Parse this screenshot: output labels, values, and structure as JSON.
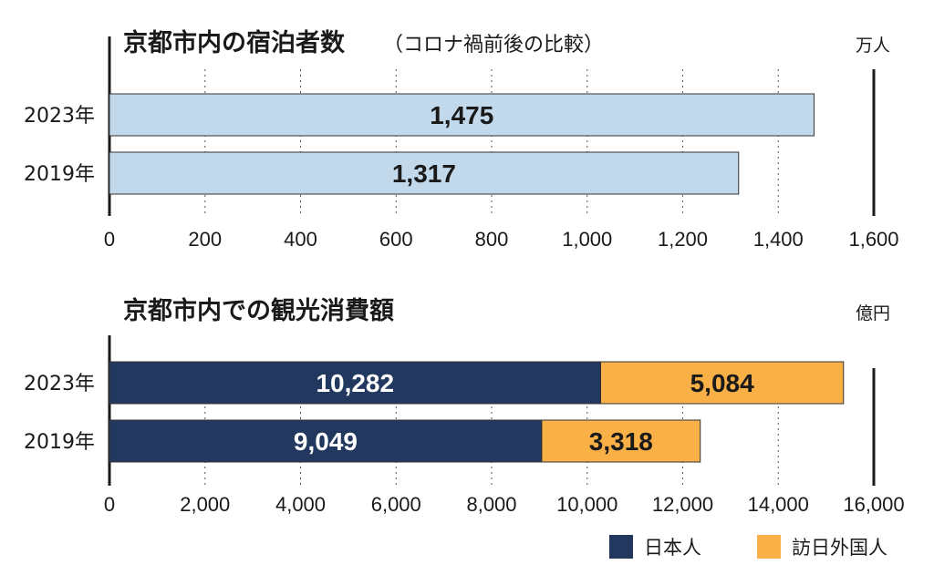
{
  "chart_data": [
    {
      "type": "bar",
      "orientation": "horizontal",
      "title": "京都市内の宿泊者数",
      "subtitle": "（コロナ禍前後の比較）",
      "unit": "万人",
      "categories": [
        "2023年",
        "2019年"
      ],
      "series": [
        {
          "values": [
            1475,
            1317
          ],
          "color": "#c2d9ec"
        }
      ],
      "data_labels": [
        "1,475",
        "1,317"
      ],
      "xlim": [
        0,
        1600
      ],
      "ticks": [
        0,
        200,
        400,
        600,
        800,
        1000,
        1200,
        1400,
        1600
      ],
      "tick_labels": [
        "0",
        "200",
        "400",
        "600",
        "800",
        "1,000",
        "1,200",
        "1,400",
        "1,600"
      ],
      "grid": "vertical dotted"
    },
    {
      "type": "bar",
      "orientation": "horizontal",
      "stacked": true,
      "title": "京都市内での観光消費額",
      "unit": "億円",
      "categories": [
        "2023年",
        "2019年"
      ],
      "series": [
        {
          "name": "日本人",
          "values": [
            10282,
            9049
          ],
          "labels": [
            "10,282",
            "9,049"
          ],
          "color": "#22385e",
          "label_color": "#ffffff"
        },
        {
          "name": "訪日外国人",
          "values": [
            5084,
            3318
          ],
          "labels": [
            "5,084",
            "3,318"
          ],
          "color": "#f9b046",
          "label_color": "#1a1a1a"
        }
      ],
      "xlim": [
        0,
        16000
      ],
      "ticks": [
        0,
        2000,
        4000,
        6000,
        8000,
        10000,
        12000,
        14000,
        16000
      ],
      "tick_labels": [
        "0",
        "2,000",
        "4,000",
        "6,000",
        "8,000",
        "10,000",
        "12,000",
        "14,000",
        "16,000"
      ],
      "grid": "vertical dotted",
      "legend_position": "bottom-right"
    }
  ]
}
